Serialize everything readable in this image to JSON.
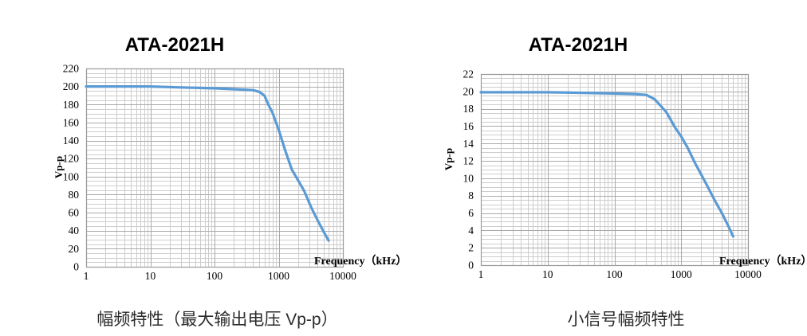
{
  "page_background": "#ffffff",
  "chart_data": [
    {
      "type": "line",
      "title": "ATA-2021H",
      "caption": "幅频特性（最大输出电压 Vp-p）",
      "xlabel": "Frequency（kHz）",
      "ylabel": "Vp-p",
      "x_scale": "log",
      "xlim": [
        1,
        10000
      ],
      "ylim": [
        0,
        220
      ],
      "y_tick_step": 20,
      "y_minor_step": 5,
      "x_ticks": [
        1,
        10,
        100,
        1000,
        10000
      ],
      "x_tick_labels": [
        "1",
        "10",
        "100",
        "1000",
        "10000"
      ],
      "grid": "major+minor, log minor verticals",
      "legend_position": "none",
      "line_color": "#5B9BD5",
      "grid_minor_color": "#cdcdcd",
      "grid_major_color": "#aaaaaa",
      "series": [
        {
          "name": "max-output-voltage-vpp",
          "x": [
            1,
            5,
            10,
            30,
            100,
            200,
            300,
            400,
            500,
            600,
            700,
            800,
            1000,
            1250,
            1600,
            2000,
            2500,
            3200,
            4000,
            5000,
            6000
          ],
          "y": [
            200,
            200,
            200,
            199,
            198,
            197,
            196.5,
            196,
            194,
            190,
            179,
            171,
            152,
            130,
            108,
            96,
            84,
            66,
            52,
            39,
            29
          ]
        }
      ]
    },
    {
      "type": "line",
      "title": "ATA-2021H",
      "caption": "小信号幅频特性",
      "xlabel": "Frequency（kHz）",
      "ylabel": "Vp-p",
      "x_scale": "log",
      "xlim": [
        1,
        10000
      ],
      "ylim": [
        0,
        22
      ],
      "y_tick_step": 2,
      "y_minor_step": 0.5,
      "x_ticks": [
        1,
        10,
        100,
        1000,
        10000
      ],
      "x_tick_labels": [
        "1",
        "10",
        "100",
        "1000",
        "10000"
      ],
      "grid": "major+minor, log minor verticals",
      "legend_position": "none",
      "line_color": "#5B9BD5",
      "grid_minor_color": "#cdcdcd",
      "grid_major_color": "#aaaaaa",
      "series": [
        {
          "name": "small-signal-vpp",
          "x": [
            1,
            5,
            10,
            30,
            100,
            200,
            300,
            400,
            500,
            600,
            700,
            800,
            1000,
            1250,
            1600,
            2000,
            2500,
            3200,
            4000,
            5000,
            6000
          ],
          "y": [
            19.9,
            19.9,
            19.9,
            19.85,
            19.75,
            19.7,
            19.6,
            19.1,
            18.3,
            17.6,
            16.7,
            15.9,
            14.8,
            13.5,
            11.8,
            10.4,
            9.0,
            7.4,
            6.1,
            4.6,
            3.3
          ]
        }
      ]
    }
  ]
}
